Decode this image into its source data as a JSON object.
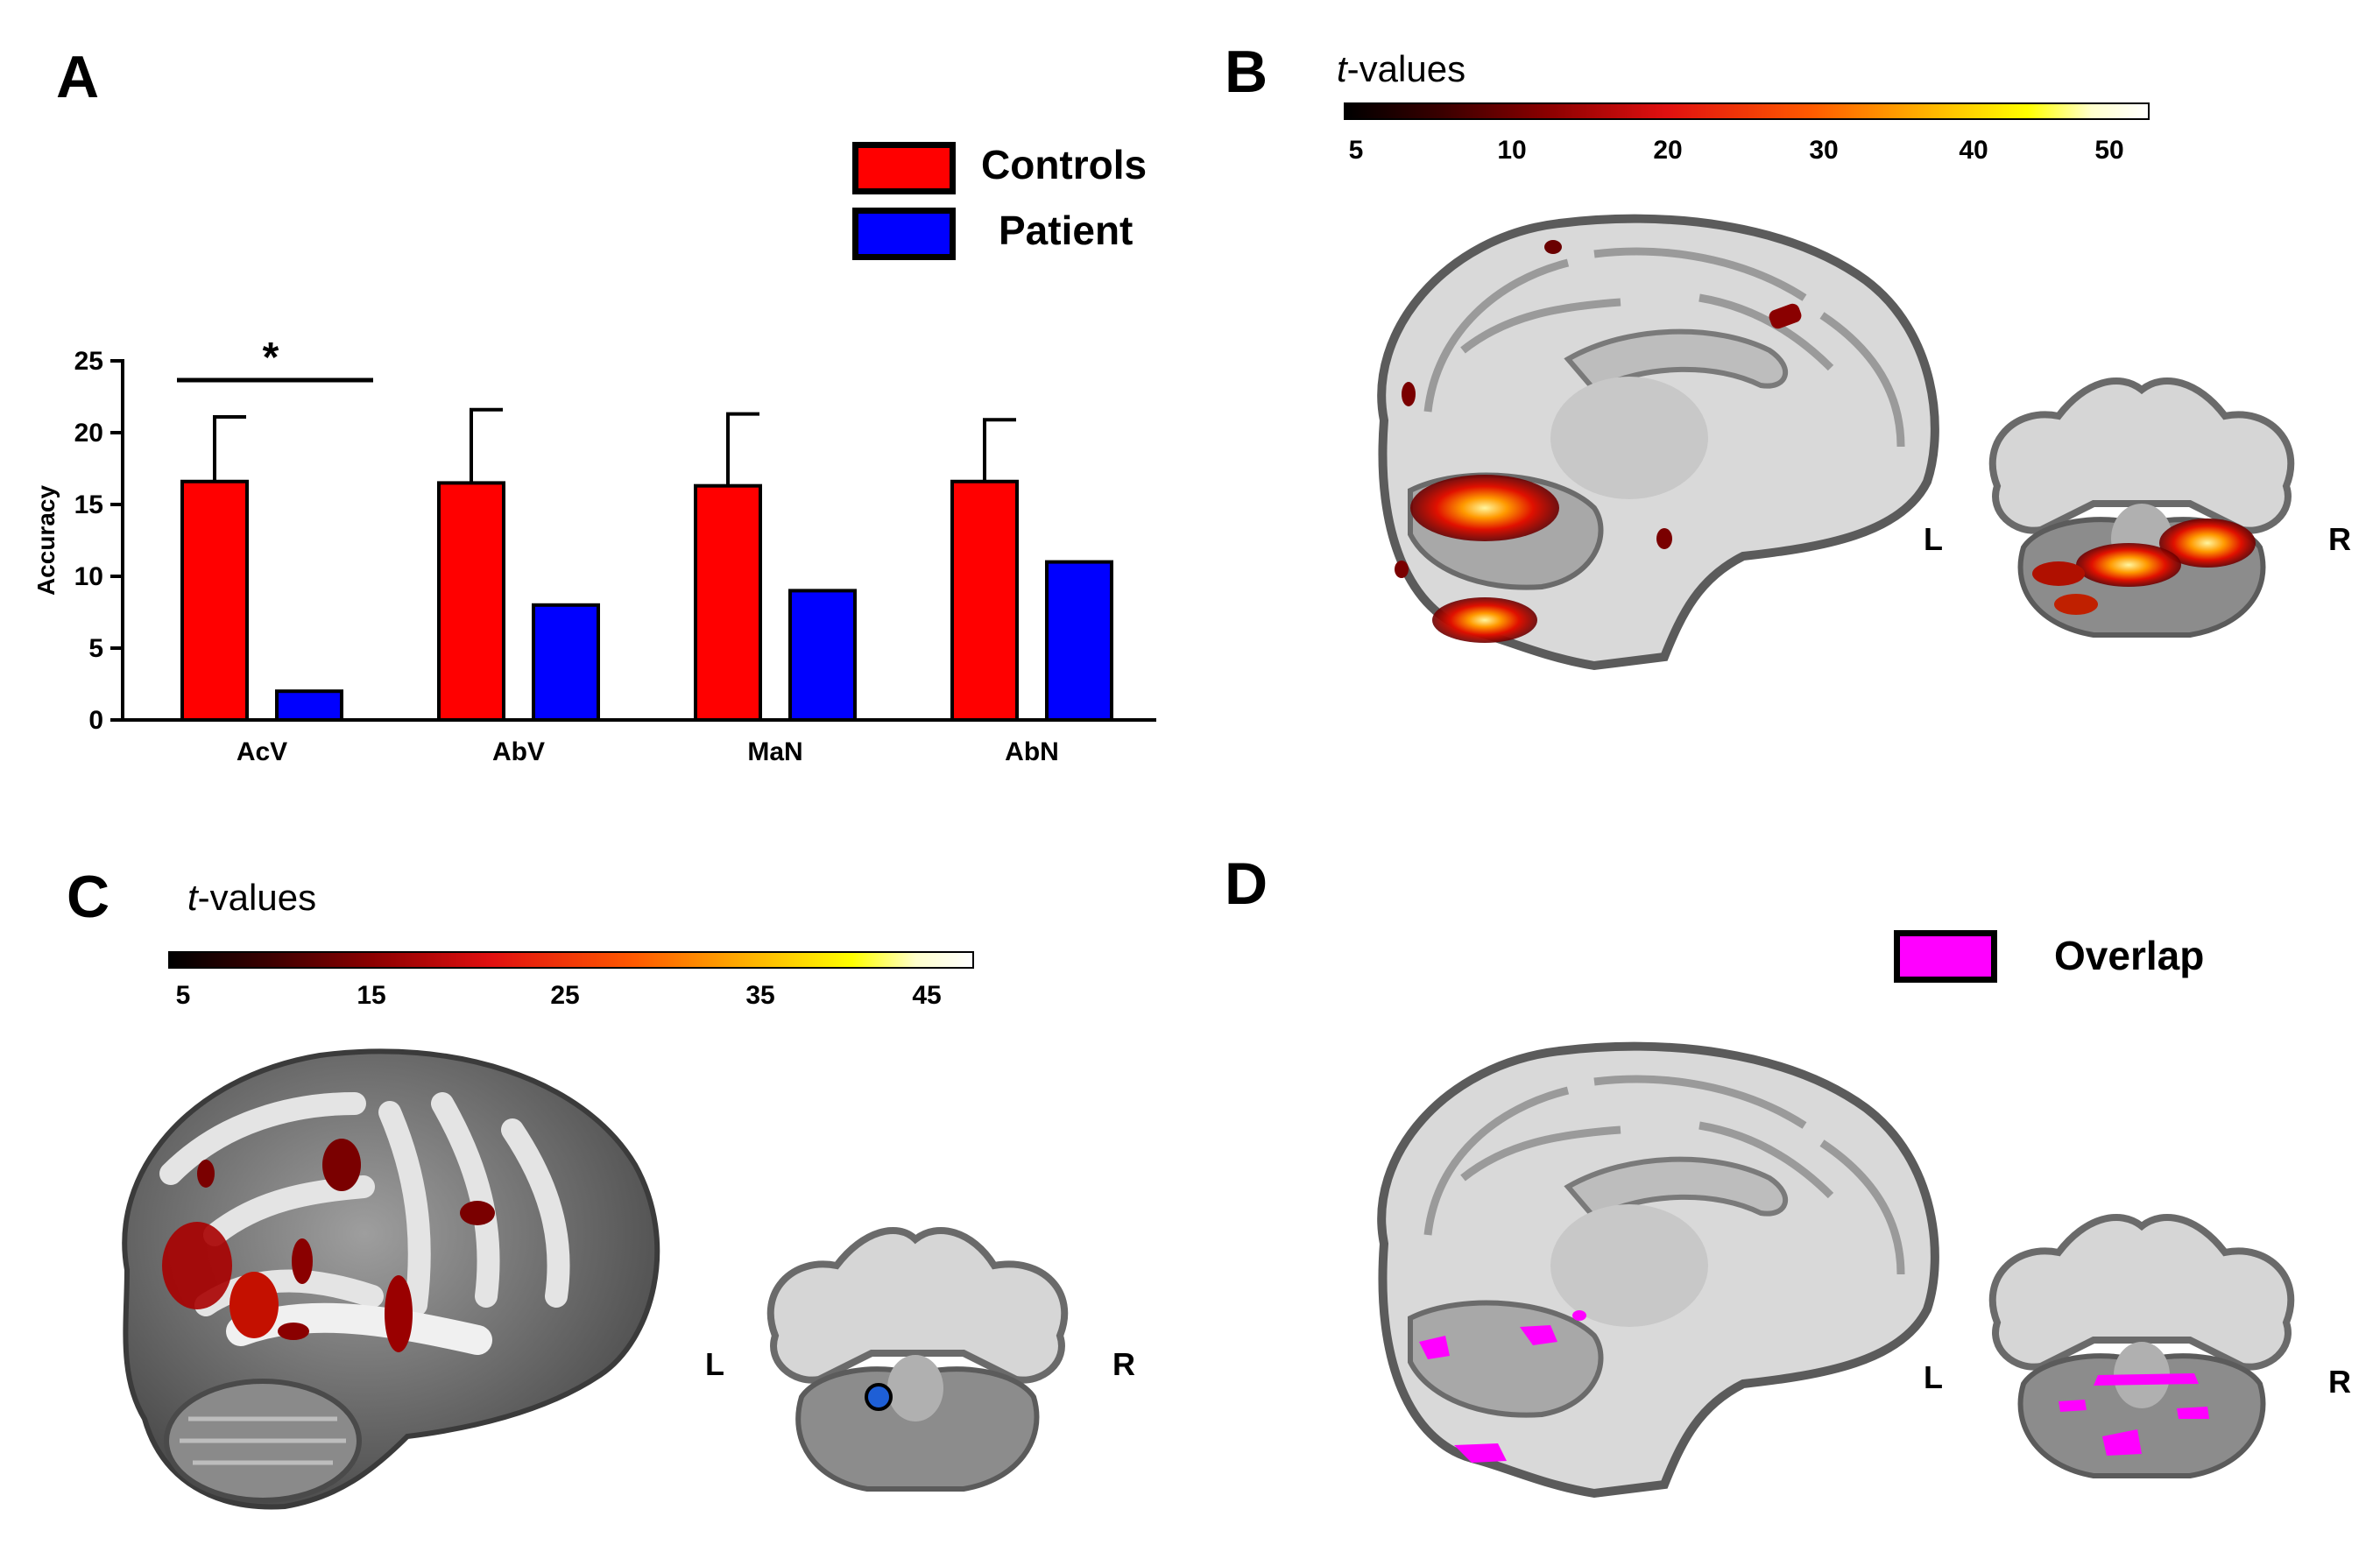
{
  "panels": {
    "a": {
      "letter": "A"
    },
    "b": {
      "letter": "B",
      "colorbar_title_italic": "t",
      "colorbar_title_rest": "-values",
      "ticks": [
        "5",
        "10",
        "20",
        "30",
        "40",
        "50"
      ],
      "left_label": "L",
      "right_label": "R"
    },
    "c": {
      "letter": "C",
      "colorbar_title_italic": "t",
      "colorbar_title_rest": "-values",
      "ticks": [
        "5",
        "15",
        "25",
        "35",
        "45"
      ],
      "left_label": "L",
      "right_label": "R"
    },
    "d": {
      "letter": "D",
      "legend_label": "Overlap",
      "left_label": "L",
      "right_label": "R"
    }
  },
  "legend": [
    {
      "label": "Controls",
      "color": "#ff0000"
    },
    {
      "label": "Patient",
      "color": "#0000ff"
    }
  ],
  "colors": {
    "controls": "#ff0000",
    "patient": "#0000ff",
    "overlap": "#ff00ff",
    "heat_low": "#000000",
    "heat_mid": "#ff2000",
    "heat_high": "#ffff00",
    "heat_top": "#ffffff",
    "seed": "#1e5fd6"
  },
  "chart_data": {
    "type": "bar",
    "categories": [
      "AcV",
      "AbV",
      "MaN",
      "AbN"
    ],
    "series": [
      {
        "name": "Controls",
        "values": [
          16.6,
          16.5,
          16.3,
          16.6
        ],
        "error": [
          4.5,
          5.1,
          5.0,
          4.3
        ]
      },
      {
        "name": "Patient",
        "values": [
          2,
          8,
          9,
          11
        ]
      }
    ],
    "ylabel": "Accuracy",
    "ylim": [
      0,
      25
    ],
    "yticks": [
      0,
      5,
      10,
      15,
      20,
      25
    ],
    "significance": {
      "label": "*",
      "category": "AcV"
    }
  }
}
